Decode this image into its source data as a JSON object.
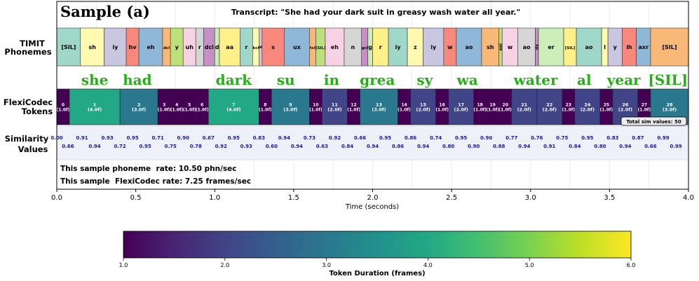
{
  "chart_data": {
    "type": "timeline",
    "title": "Sample (a)",
    "transcript": "Transcript: \"She had your dark suit in greasy wash water all year.\"",
    "xlabel": "Time (seconds)",
    "xlim": [
      0.0,
      4.0
    ],
    "xticks": [
      "0.0",
      "0.5",
      "1.0",
      "1.5",
      "2.0",
      "2.5",
      "3.0",
      "3.5",
      "4.0"
    ],
    "row_labels": {
      "phonemes": [
        "TIMIT",
        "Phonemes"
      ],
      "tokens": [
        "FlexiCodec",
        "Tokens"
      ],
      "similarity": [
        "Similarity",
        "Values"
      ]
    },
    "phonemes": [
      {
        "label": "[SIL]",
        "start": 0.0,
        "end": 0.15,
        "color": "#9fd8c8"
      },
      {
        "label": "sh",
        "start": 0.15,
        "end": 0.3,
        "color": "#fffab0"
      },
      {
        "label": "iy",
        "start": 0.3,
        "end": 0.44,
        "color": "#c9c6e0"
      },
      {
        "label": "hv",
        "start": 0.44,
        "end": 0.52,
        "color": "#f8877c"
      },
      {
        "label": "eh",
        "start": 0.52,
        "end": 0.67,
        "color": "#8fb8d8"
      },
      {
        "label": "dcl",
        "start": 0.67,
        "end": 0.72,
        "color": "#f8b878"
      },
      {
        "label": "y",
        "start": 0.72,
        "end": 0.8,
        "color": "#bde07a"
      },
      {
        "label": "uh",
        "start": 0.8,
        "end": 0.88,
        "color": "#f6d2e4"
      },
      {
        "label": "r",
        "start": 0.88,
        "end": 0.93,
        "color": "#d6d6d6"
      },
      {
        "label": "dcl",
        "start": 0.93,
        "end": 1.0,
        "color": "#c690c6"
      },
      {
        "label": "d",
        "start": 1.0,
        "end": 1.03,
        "color": "#cceeb8"
      },
      {
        "label": "aa",
        "start": 1.03,
        "end": 1.16,
        "color": "#fff08a"
      },
      {
        "label": "r",
        "start": 1.16,
        "end": 1.24,
        "color": "#9fd8c8"
      },
      {
        "label": "kcl",
        "start": 1.24,
        "end": 1.28,
        "color": "#fffab0"
      },
      {
        "label": "k",
        "start": 1.28,
        "end": 1.3,
        "color": "#c9c6e0"
      },
      {
        "label": "s",
        "start": 1.3,
        "end": 1.44,
        "color": "#f8877c"
      },
      {
        "label": "ux",
        "start": 1.44,
        "end": 1.6,
        "color": "#8fb8d8"
      },
      {
        "label": "tcl",
        "start": 1.6,
        "end": 1.64,
        "color": "#f8b878"
      },
      {
        "label": "[SIL]",
        "start": 1.64,
        "end": 1.7,
        "color": "#bde07a"
      },
      {
        "label": "eh",
        "start": 1.7,
        "end": 1.82,
        "color": "#f6d2e4"
      },
      {
        "label": "n",
        "start": 1.82,
        "end": 1.93,
        "color": "#d6d6d6"
      },
      {
        "label": "gcl",
        "start": 1.93,
        "end": 1.97,
        "color": "#c690c6"
      },
      {
        "label": "g",
        "start": 1.97,
        "end": 2.0,
        "color": "#cceeb8"
      },
      {
        "label": "r",
        "start": 2.0,
        "end": 2.1,
        "color": "#fff08a"
      },
      {
        "label": "iy",
        "start": 2.1,
        "end": 2.22,
        "color": "#9fd8c8"
      },
      {
        "label": "z",
        "start": 2.22,
        "end": 2.32,
        "color": "#fffab0"
      },
      {
        "label": "iy",
        "start": 2.32,
        "end": 2.45,
        "color": "#c9c6e0"
      },
      {
        "label": "w",
        "start": 2.45,
        "end": 2.53,
        "color": "#f8877c"
      },
      {
        "label": "ao",
        "start": 2.53,
        "end": 2.69,
        "color": "#8fb8d8"
      },
      {
        "label": "sh",
        "start": 2.69,
        "end": 2.8,
        "color": "#f8b878"
      },
      {
        "label": "epi",
        "start": 2.8,
        "end": 2.82,
        "color": "#bde07a"
      },
      {
        "label": "w",
        "start": 2.82,
        "end": 2.92,
        "color": "#f6d2e4"
      },
      {
        "label": "ao",
        "start": 2.92,
        "end": 3.03,
        "color": "#d6d6d6"
      },
      {
        "label": "dx",
        "start": 3.03,
        "end": 3.05,
        "color": "#c690c6"
      },
      {
        "label": "er",
        "start": 3.05,
        "end": 3.21,
        "color": "#cceeb8"
      },
      {
        "label": "[SIL]",
        "start": 3.21,
        "end": 3.29,
        "color": "#fff08a"
      },
      {
        "label": "ao",
        "start": 3.29,
        "end": 3.45,
        "color": "#9fd8c8"
      },
      {
        "label": "l",
        "start": 3.45,
        "end": 3.49,
        "color": "#fffab0"
      },
      {
        "label": "y",
        "start": 3.49,
        "end": 3.58,
        "color": "#c9c6e0"
      },
      {
        "label": "ih",
        "start": 3.58,
        "end": 3.67,
        "color": "#f8877c"
      },
      {
        "label": "axr",
        "start": 3.67,
        "end": 3.76,
        "color": "#8fb8d8"
      },
      {
        "label": "[SIL]",
        "start": 3.76,
        "end": 4.0,
        "color": "#f8b878"
      }
    ],
    "words": [
      {
        "text": "she",
        "x": 0.24
      },
      {
        "text": "had",
        "x": 0.51
      },
      {
        "text": "dark",
        "x": 1.12
      },
      {
        "text": "su",
        "x": 1.45
      },
      {
        "text": "in",
        "x": 1.74
      },
      {
        "text": "grea",
        "x": 2.03
      },
      {
        "text": "sy",
        "x": 2.33
      },
      {
        "text": "wa",
        "x": 2.6
      },
      {
        "text": "wa",
        "x": 2.96
      },
      {
        "text": "ter",
        "x": 3.1
      },
      {
        "text": "al",
        "x": 3.34
      },
      {
        "text": "year",
        "x": 3.59
      },
      {
        "text": "[SIL]",
        "x": 3.87
      }
    ],
    "tokens": [
      {
        "id": "0",
        "dur": "(1.0f)",
        "frames": 1,
        "start": 0.0,
        "end": 0.08
      },
      {
        "id": "1",
        "dur": "(4.0f)",
        "frames": 4,
        "start": 0.08,
        "end": 0.4
      },
      {
        "id": "2",
        "dur": "(3.0f)",
        "frames": 3,
        "start": 0.4,
        "end": 0.64
      },
      {
        "id": "3",
        "dur": "(1.0f)",
        "frames": 1,
        "start": 0.64,
        "end": 0.72
      },
      {
        "id": "4",
        "dur": "(1.0f)",
        "frames": 1,
        "start": 0.72,
        "end": 0.8
      },
      {
        "id": "5",
        "dur": "(1.0f)",
        "frames": 1,
        "start": 0.8,
        "end": 0.88
      },
      {
        "id": "6",
        "dur": "(1.0f)",
        "frames": 1,
        "start": 0.88,
        "end": 0.96
      },
      {
        "id": "7",
        "dur": "(4.0f)",
        "frames": 4,
        "start": 0.96,
        "end": 1.28
      },
      {
        "id": "8",
        "dur": "(1.0f)",
        "frames": 1,
        "start": 1.28,
        "end": 1.36
      },
      {
        "id": "9",
        "dur": "(3.0f)",
        "frames": 3,
        "start": 1.36,
        "end": 1.6
      },
      {
        "id": "10",
        "dur": "(1.0f)",
        "frames": 1,
        "start": 1.6,
        "end": 1.68
      },
      {
        "id": "11",
        "dur": "(2.0f)",
        "frames": 2,
        "start": 1.68,
        "end": 1.84
      },
      {
        "id": "12",
        "dur": "(1.0f)",
        "frames": 1,
        "start": 1.84,
        "end": 1.92
      },
      {
        "id": "13",
        "dur": "(3.0f)",
        "frames": 3,
        "start": 1.92,
        "end": 2.16
      },
      {
        "id": "14",
        "dur": "(1.0f)",
        "frames": 1,
        "start": 2.16,
        "end": 2.24
      },
      {
        "id": "15",
        "dur": "(2.0f)",
        "frames": 2,
        "start": 2.24,
        "end": 2.4
      },
      {
        "id": "16",
        "dur": "(1.0f)",
        "frames": 1,
        "start": 2.4,
        "end": 2.48
      },
      {
        "id": "17",
        "dur": "(2.0f)",
        "frames": 2,
        "start": 2.48,
        "end": 2.64
      },
      {
        "id": "18",
        "dur": "(1.0f)",
        "frames": 1,
        "start": 2.64,
        "end": 2.72
      },
      {
        "id": "19",
        "dur": "(1.0f)",
        "frames": 1,
        "start": 2.72,
        "end": 2.8
      },
      {
        "id": "20",
        "dur": "(1.0f)",
        "frames": 1,
        "start": 2.8,
        "end": 2.88
      },
      {
        "id": "21",
        "dur": "(2.0f)",
        "frames": 2,
        "start": 2.88,
        "end": 3.04
      },
      {
        "id": "22",
        "dur": "(2.0f)",
        "frames": 2,
        "start": 3.04,
        "end": 3.2
      },
      {
        "id": "23",
        "dur": "(1.0f)",
        "frames": 1,
        "start": 3.2,
        "end": 3.28
      },
      {
        "id": "24",
        "dur": "(2.0f)",
        "frames": 2,
        "start": 3.28,
        "end": 3.44
      },
      {
        "id": "25",
        "dur": "(1.0f)",
        "frames": 1,
        "start": 3.44,
        "end": 3.52
      },
      {
        "id": "26",
        "dur": "(2.0f)",
        "frames": 2,
        "start": 3.52,
        "end": 3.68
      },
      {
        "id": "27",
        "dur": "(1.0f)",
        "frames": 1,
        "start": 3.68,
        "end": 3.76
      },
      {
        "id": "28",
        "dur": "(3.0f)",
        "frames": 3,
        "start": 3.76,
        "end": 4.0
      }
    ],
    "total_sim_label": "Total sim values: 50",
    "similarity": [
      {
        "t": 0.0,
        "v": "0.00"
      },
      {
        "t": 0.0,
        "v": "0.66"
      },
      {
        "t": 0.16,
        "v": "0.91"
      },
      {
        "t": 0.24,
        "v": "0.94"
      },
      {
        "t": 0.32,
        "v": "0.93"
      },
      {
        "t": 0.4,
        "v": "0.72"
      },
      {
        "t": 0.48,
        "v": "0.95"
      },
      {
        "t": 0.56,
        "v": "0.95"
      },
      {
        "t": 0.64,
        "v": "0.71"
      },
      {
        "t": 0.72,
        "v": "0.75"
      },
      {
        "t": 0.8,
        "v": "0.90"
      },
      {
        "t": 0.88,
        "v": "0.78"
      },
      {
        "t": 0.96,
        "v": "0.67"
      },
      {
        "t": 1.04,
        "v": "0.92"
      },
      {
        "t": 1.12,
        "v": "0.95"
      },
      {
        "t": 1.2,
        "v": "0.93"
      },
      {
        "t": 1.28,
        "v": "0.83"
      },
      {
        "t": 1.36,
        "v": "0.60"
      },
      {
        "t": 1.44,
        "v": "0.94"
      },
      {
        "t": 1.52,
        "v": "0.94"
      },
      {
        "t": 1.6,
        "v": "0.73"
      },
      {
        "t": 1.68,
        "v": "0.63"
      },
      {
        "t": 1.76,
        "v": "0.92"
      },
      {
        "t": 1.84,
        "v": "0.84"
      },
      {
        "t": 1.92,
        "v": "0.66"
      },
      {
        "t": 2.0,
        "v": "0.94"
      },
      {
        "t": 2.08,
        "v": "0.95"
      },
      {
        "t": 2.16,
        "v": "0.86"
      },
      {
        "t": 2.24,
        "v": "0.86"
      },
      {
        "t": 2.32,
        "v": "0.94"
      },
      {
        "t": 2.4,
        "v": "0.74"
      },
      {
        "t": 2.48,
        "v": "0.80"
      },
      {
        "t": 2.56,
        "v": "0.95"
      },
      {
        "t": 2.64,
        "v": "0.90"
      },
      {
        "t": 2.72,
        "v": "0.90"
      },
      {
        "t": 2.8,
        "v": "0.88"
      },
      {
        "t": 2.88,
        "v": "0.77"
      },
      {
        "t": 2.96,
        "v": "0.94"
      },
      {
        "t": 3.04,
        "v": "0.76"
      },
      {
        "t": 3.12,
        "v": "0.91"
      },
      {
        "t": 3.2,
        "v": "0.75"
      },
      {
        "t": 3.28,
        "v": "0.84"
      },
      {
        "t": 3.36,
        "v": "0.95"
      },
      {
        "t": 3.44,
        "v": "0.80"
      },
      {
        "t": 3.52,
        "v": "0.83"
      },
      {
        "t": 3.6,
        "v": "0.94"
      },
      {
        "t": 3.68,
        "v": "0.87"
      },
      {
        "t": 3.76,
        "v": "0.66"
      },
      {
        "t": 3.84,
        "v": "0.99"
      },
      {
        "t": 3.92,
        "v": "0.99"
      }
    ],
    "rates": [
      "This sample phoneme  rate: 10.50 phn/sec",
      "This sample  FlexiCodec rate: 7.25 frames/sec"
    ],
    "colorbar": {
      "label": "Token Duration (frames)",
      "range": [
        1.0,
        6.0
      ],
      "ticks": [
        "1.0",
        "2.0",
        "3.0",
        "4.0",
        "5.0",
        "6.0"
      ],
      "colormap": "viridis"
    },
    "word_color": "#22b014",
    "sim_text_color": "#1a1aa0"
  }
}
